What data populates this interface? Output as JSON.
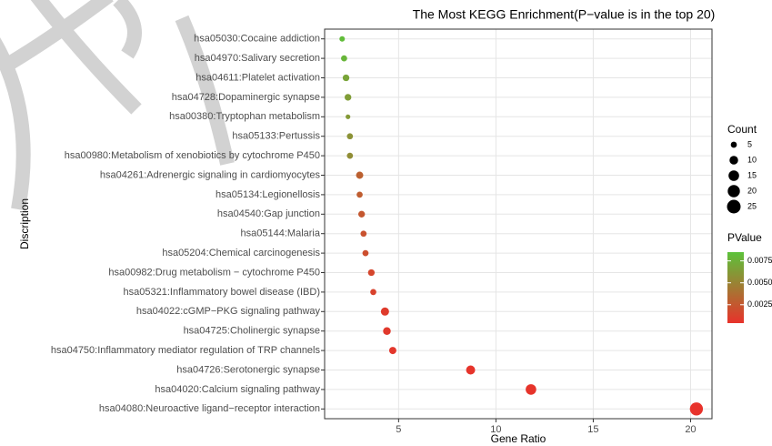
{
  "chart_data": {
    "type": "scatter",
    "title": "The Most KEGG Enrichment(P−value is in the top 20)",
    "xlabel": "Gene Ratio",
    "ylabel": "Discription",
    "categories": [
      "hsa05030:Cocaine addiction",
      "hsa04970:Salivary secretion",
      "hsa04611:Platelet activation",
      "hsa04728:Dopaminergic synapse",
      "hsa00380:Tryptophan metabolism",
      "hsa05133:Pertussis",
      "hsa00980:Metabolism of xenobiotics by cytochrome P450",
      "hsa04261:Adrenergic signaling in cardiomyocytes",
      "hsa05134:Legionellosis",
      "hsa04540:Gap junction",
      "hsa05144:Malaria",
      "hsa05204:Chemical carcinogenesis",
      "hsa00982:Drug metabolism − cytochrome P450",
      "hsa05321:Inflammatory bowel disease (IBD)",
      "hsa04022:cGMP−PKG signaling pathway",
      "hsa04725:Cholinergic synapse",
      "hsa04750:Inflammatory mediator regulation of TRP channels",
      "hsa04726:Serotonergic synapse",
      "hsa04020:Calcium signaling pathway",
      "hsa04080:Neuroactive ligand−receptor interaction"
    ],
    "x": [
      2.1,
      2.2,
      2.3,
      2.4,
      2.4,
      2.5,
      2.5,
      3.0,
      3.0,
      3.1,
      3.2,
      3.3,
      3.6,
      3.7,
      4.3,
      4.4,
      4.7,
      8.7,
      11.8,
      20.3
    ],
    "sizes": [
      4,
      5,
      6,
      6,
      3,
      5,
      5,
      7,
      5,
      6,
      5,
      5,
      6,
      5,
      9,
      8,
      7,
      11,
      15,
      23
    ],
    "pvalues": [
      0.0082,
      0.0078,
      0.0068,
      0.0064,
      0.0062,
      0.0058,
      0.0055,
      0.003,
      0.0028,
      0.0025,
      0.0022,
      0.002,
      0.0015,
      0.0013,
      0.0009,
      0.0008,
      0.0007,
      0.0005,
      0.0005,
      0.0004
    ],
    "xlim": [
      1.2,
      21.1
    ],
    "xticks": [
      5,
      10,
      15,
      20
    ],
    "grid": true,
    "size_legend": {
      "title": "Count",
      "values": [
        5,
        10,
        15,
        20,
        25
      ]
    },
    "color_legend": {
      "title": "PValue",
      "colors": [
        "#e8322b",
        "#5cc23b"
      ],
      "lim": [
        0.0004,
        0.0085
      ],
      "ticks": [
        0.0075,
        {
          "value": 0.005,
          "label": "0.0050"
        },
        0.0025
      ]
    }
  }
}
